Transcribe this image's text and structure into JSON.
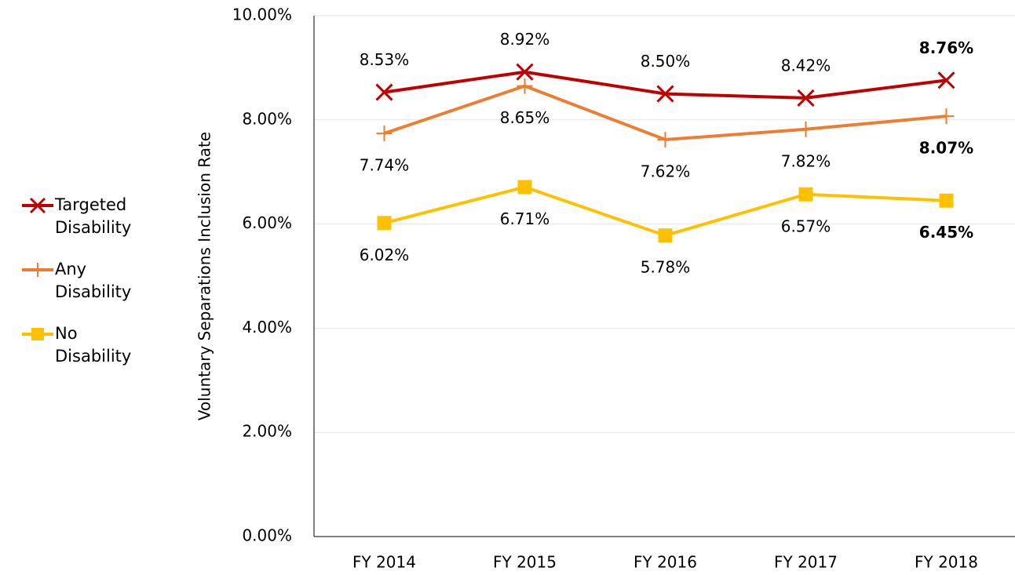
{
  "chart_data": {
    "type": "line",
    "y_label": "Voluntary Separations Inclusion Rate",
    "categories": [
      "FY 2014",
      "FY 2015",
      "FY 2016",
      "FY 2017",
      "FY 2018"
    ],
    "series": [
      {
        "name": "Targeted Disability",
        "color": "#c00000",
        "marker": "x",
        "values": [
          8.53,
          8.92,
          8.5,
          8.42,
          8.76
        ],
        "value_labels": [
          "8.53%",
          "8.92%",
          "8.50%",
          "8.42%",
          "8.76%"
        ]
      },
      {
        "name": "Any Disability",
        "color": "#ed7d31",
        "marker": "+",
        "values": [
          7.74,
          8.65,
          7.62,
          7.82,
          8.07
        ],
        "value_labels": [
          "7.74%",
          "8.65%",
          "7.62%",
          "7.82%",
          "8.07%"
        ]
      },
      {
        "name": "No Disability",
        "color": "#ffc000",
        "marker": "square",
        "values": [
          6.02,
          6.71,
          5.78,
          6.57,
          6.45
        ],
        "value_labels": [
          "6.02%",
          "6.71%",
          "5.78%",
          "6.57%",
          "6.45%"
        ]
      }
    ],
    "ylim": [
      0,
      10
    ],
    "yticks": [
      {
        "value": 0,
        "label": "0.00%"
      },
      {
        "value": 2,
        "label": "2.00%"
      },
      {
        "value": 4,
        "label": "4.00%"
      },
      {
        "value": 6,
        "label": "6.00%"
      },
      {
        "value": 8,
        "label": "8.00%"
      },
      {
        "value": 10,
        "label": "10.00%"
      }
    ],
    "grid": true,
    "legend": "left"
  }
}
